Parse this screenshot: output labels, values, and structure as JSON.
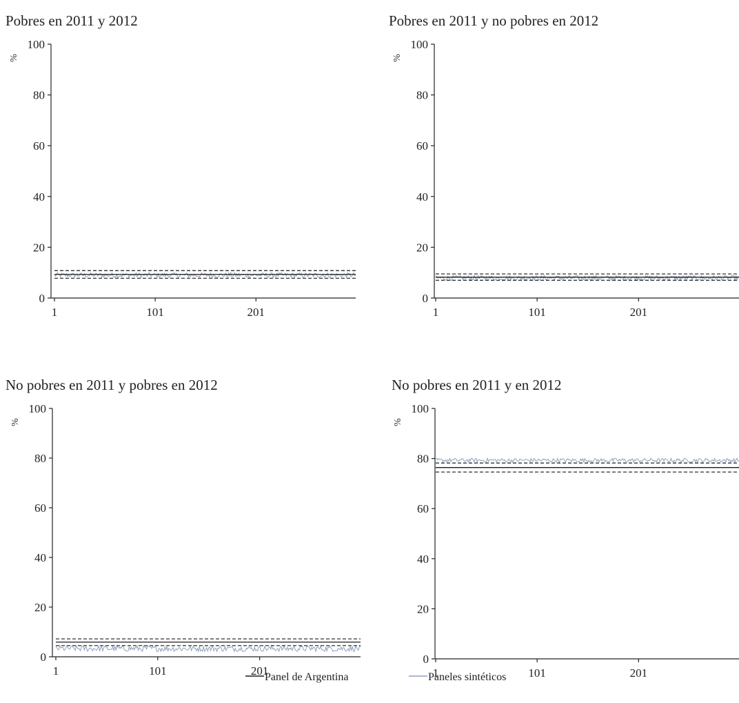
{
  "chart_data": [
    {
      "type": "line",
      "title": "Pobres en 2011 y 2012",
      "ylabel": "%",
      "ylim": [
        0,
        100
      ],
      "yticks": [
        "0",
        "20",
        "40",
        "60",
        "80",
        "100"
      ],
      "xticks": [
        "1",
        "101",
        "201"
      ],
      "xlim": [
        1,
        300
      ],
      "argentina": {
        "value": 9.3,
        "ci_upper": 10.8,
        "ci_lower": 7.8
      },
      "synthetic": {
        "mean": 9.0,
        "amplitude": 1.0,
        "n": 300
      }
    },
    {
      "type": "line",
      "title": "Pobres en 2011 y no pobres en 2012",
      "ylabel": "%",
      "ylim": [
        0,
        100
      ],
      "yticks": [
        "0",
        "20",
        "40",
        "60",
        "80",
        "100"
      ],
      "xticks": [
        "1",
        "101",
        "201"
      ],
      "xlim": [
        1,
        300
      ],
      "argentina": {
        "value": 8.2,
        "ci_upper": 9.5,
        "ci_lower": 7.0
      },
      "synthetic": {
        "mean": 7.9,
        "amplitude": 1.0,
        "n": 300
      }
    },
    {
      "type": "line",
      "title": "No pobres en 2011 y pobres en 2012",
      "ylabel": "%",
      "ylim": [
        0,
        100
      ],
      "yticks": [
        "0",
        "20",
        "40",
        "60",
        "80",
        "100"
      ],
      "xticks": [
        "1",
        "101",
        "201"
      ],
      "xlim": [
        1,
        300
      ],
      "argentina": {
        "value": 5.9,
        "ci_upper": 7.2,
        "ci_lower": 4.5
      },
      "synthetic": {
        "mean": 3.3,
        "amplitude": 1.2,
        "n": 300
      }
    },
    {
      "type": "line",
      "title": "No pobres en 2011 y en 2012",
      "ylabel": "%",
      "ylim": [
        0,
        100
      ],
      "yticks": [
        "0",
        "20",
        "40",
        "60",
        "80",
        "100"
      ],
      "xticks": [
        "1",
        "101",
        "201"
      ],
      "xlim": [
        1,
        300
      ],
      "argentina": {
        "value": 76.4,
        "ci_upper": 78.2,
        "ci_lower": 74.6
      },
      "synthetic": {
        "mean": 79.3,
        "amplitude": 0.8,
        "n": 300
      }
    }
  ],
  "legend": [
    {
      "label": "Panel de Argentina",
      "color": "#1a1a1a"
    },
    {
      "label": "Paneles sintéticos",
      "color": "#8ea0bd"
    }
  ],
  "colors": {
    "argentina": "#1a1a1a",
    "synthetic": "#8ea0bd",
    "axis": "#222222"
  }
}
